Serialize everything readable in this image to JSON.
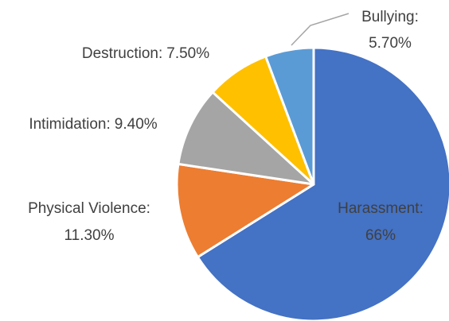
{
  "chart_data": {
    "type": "pie",
    "categories": [
      "Harassment:",
      "Physical Violence:",
      "Intimidation:",
      "Destruction:",
      "Bullying:"
    ],
    "values": [
      66,
      11.3,
      9.4,
      7.5,
      5.7
    ],
    "value_labels": [
      "66%",
      "11.30%",
      "9.40%",
      "7.50%",
      "5.70%"
    ],
    "colors": [
      "#4472c4",
      "#ed7d31",
      "#a5a5a5",
      "#ffc000",
      "#5b9bd5"
    ]
  }
}
